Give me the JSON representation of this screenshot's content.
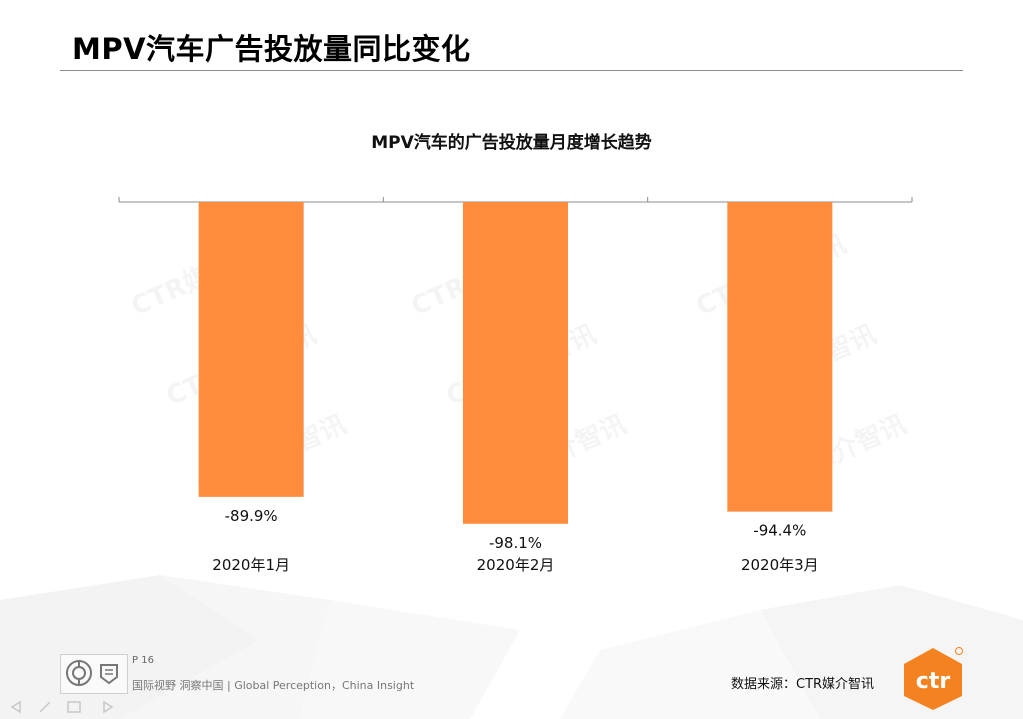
{
  "page": {
    "title": "MPV汽车广告投放量同比变化",
    "page_number": "P 16",
    "slogan": "国际视野  洞察中国 |  Global Perception，China Insight",
    "source": "数据来源：CTR媒介智讯",
    "watermark": "CTR媒介智讯",
    "logo_text": "ctr",
    "cert_icons": [
      "sgs-icon",
      "ukas-icon"
    ]
  },
  "colors": {
    "bar": "#FF8B3D",
    "axis": "#8c8c8c",
    "logo": "#F58220"
  },
  "chart_data": {
    "type": "bar",
    "title": "MPV汽车的广告投放量月度增长趋势",
    "categories": [
      "2020年1月",
      "2020年2月",
      "2020年3月"
    ],
    "values": [
      -89.9,
      -98.1,
      -94.4
    ],
    "data_labels": [
      "-89.9%",
      "-98.1%",
      "-94.4%"
    ],
    "ylim": [
      -100,
      0
    ],
    "grid": false,
    "legend": "none",
    "xlabel": "",
    "ylabel": ""
  }
}
